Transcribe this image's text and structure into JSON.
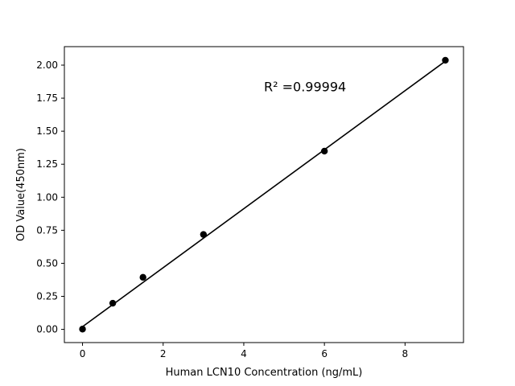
{
  "chart_data": {
    "type": "scatter",
    "title": "",
    "xlabel": "Human LCN10 Concentration (ng/mL)",
    "ylabel": "OD Value(450nm)",
    "xlim": [
      -0.45,
      9.45
    ],
    "ylim": [
      -0.1,
      2.14
    ],
    "xticks": [
      0,
      2,
      4,
      6,
      8
    ],
    "xtick_labels": [
      "0",
      "2",
      "4",
      "6",
      "8"
    ],
    "yticks": [
      0.0,
      0.25,
      0.5,
      0.75,
      1.0,
      1.25,
      1.5,
      1.75,
      2.0
    ],
    "ytick_labels": [
      "0.00",
      "0.25",
      "0.50",
      "0.75",
      "1.00",
      "1.25",
      "1.50",
      "1.75",
      "2.00"
    ],
    "grid": false,
    "series": [
      {
        "x": [
          0,
          0.75,
          1.5,
          3,
          6,
          9
        ],
        "y": [
          0.002,
          0.198,
          0.394,
          0.718,
          1.349,
          2.037
        ],
        "color": "#000000",
        "marker": "circle"
      }
    ],
    "fit_line": {
      "x": [
        0,
        9
      ],
      "y": [
        0.02,
        2.03
      ],
      "color": "#000000"
    },
    "annotation": {
      "text": "R² =0.99994",
      "x": 4.5,
      "y": 1.84
    }
  }
}
